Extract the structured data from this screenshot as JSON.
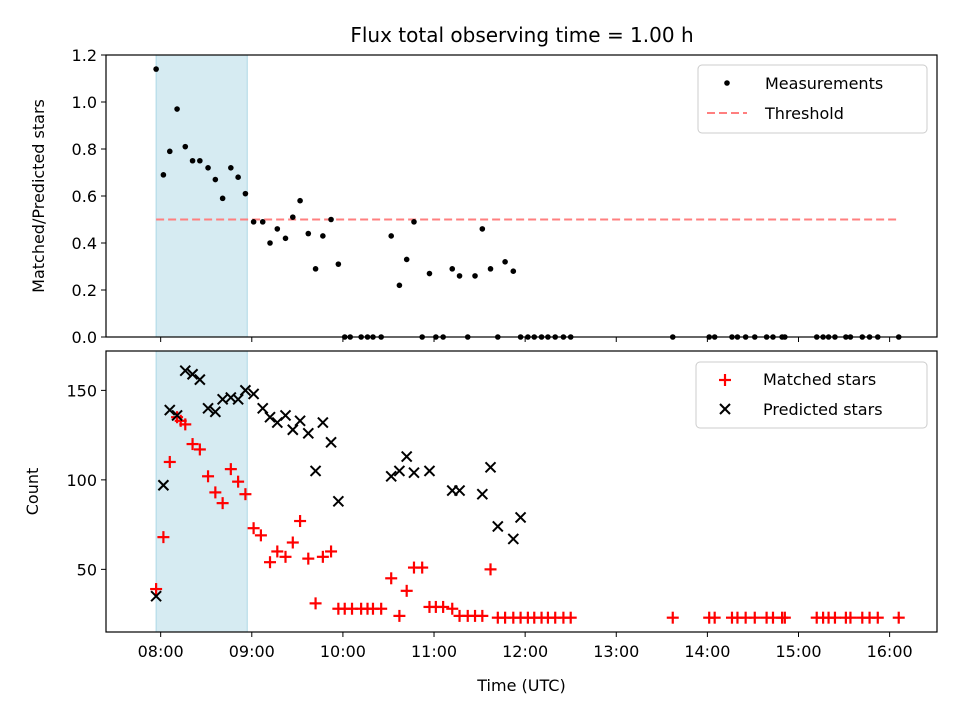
{
  "chart_data": [
    {
      "type": "scatter",
      "title": "Flux total observing time = 1.00 h",
      "xlabel": "",
      "ylabel": "Matched/Predicted stars",
      "xlim": [
        7.4,
        16.52
      ],
      "ylim": [
        0,
        1.2
      ],
      "yticks": [
        0,
        0.2,
        0.4,
        0.6,
        0.8,
        1.0,
        1.2
      ],
      "ytick_labels": [
        "0.0",
        "0.2",
        "0.4",
        "0.6",
        "0.8",
        "1.0",
        "1.2"
      ],
      "legend": {
        "position": "top-right",
        "entries": [
          "Measurements",
          "Threshold"
        ]
      },
      "highlight_span": {
        "x": [
          7.95,
          8.95
        ],
        "color": "#add8e6"
      },
      "threshold": {
        "name": "Threshold",
        "y": 0.5,
        "x": [
          7.95,
          16.1
        ],
        "color": "#ff7f7f"
      },
      "series": [
        {
          "name": "Measurements",
          "marker": "dot",
          "color": "#000000",
          "x": [
            7.95,
            8.03,
            8.1,
            8.18,
            8.27,
            8.35,
            8.43,
            8.52,
            8.6,
            8.68,
            8.77,
            8.85,
            8.93,
            9.02,
            9.12,
            9.2,
            9.28,
            9.37,
            9.45,
            9.53,
            9.62,
            9.7,
            9.78,
            9.87,
            9.95,
            10.02,
            10.08,
            10.2,
            10.27,
            10.33,
            10.42,
            10.53,
            10.62,
            10.7,
            10.78,
            10.87,
            10.95,
            11.02,
            11.1,
            11.2,
            11.28,
            11.37,
            11.45,
            11.53,
            11.62,
            11.7,
            11.78,
            11.87,
            11.95,
            12.03,
            12.1,
            12.18,
            12.25,
            12.33,
            12.42,
            12.5,
            13.62,
            14.02,
            14.08,
            14.27,
            14.33,
            14.42,
            14.52,
            14.65,
            14.72,
            14.82,
            14.85,
            15.2,
            15.27,
            15.33,
            15.4,
            15.52,
            15.57,
            15.7,
            15.78,
            15.87,
            16.1
          ],
          "y": [
            1.14,
            0.69,
            0.79,
            0.97,
            0.81,
            0.75,
            0.75,
            0.72,
            0.67,
            0.59,
            0.72,
            0.68,
            0.61,
            0.49,
            0.49,
            0.4,
            0.46,
            0.42,
            0.51,
            0.58,
            0.44,
            0.29,
            0.43,
            0.5,
            0.31,
            0,
            0,
            0,
            0,
            0,
            0,
            0.43,
            0.22,
            0.33,
            0.49,
            0,
            0.27,
            0,
            0,
            0.29,
            0.26,
            0,
            0.26,
            0.46,
            0.29,
            0,
            0.32,
            0.28,
            0,
            0,
            0,
            0,
            0,
            0,
            0,
            0,
            0,
            0,
            0,
            0,
            0,
            0,
            0,
            0,
            0,
            0,
            0,
            0,
            0,
            0,
            0,
            0,
            0,
            0,
            0,
            0,
            0
          ]
        }
      ]
    },
    {
      "type": "scatter",
      "title": "",
      "xlabel": "Time (UTC)",
      "ylabel": "Count",
      "xlim": [
        7.4,
        16.52
      ],
      "ylim": [
        15,
        172
      ],
      "yticks": [
        50,
        100,
        150
      ],
      "ytick_labels": [
        "50",
        "100",
        "150"
      ],
      "xticks": [
        8,
        9,
        10,
        11,
        12,
        13,
        14,
        15,
        16
      ],
      "xtick_labels": [
        "08:00",
        "09:00",
        "10:00",
        "11:00",
        "12:00",
        "13:00",
        "14:00",
        "15:00",
        "16:00"
      ],
      "legend": {
        "position": "top-right",
        "entries": [
          "Matched stars",
          "Predicted stars"
        ]
      },
      "highlight_span": {
        "x": [
          7.95,
          8.95
        ],
        "color": "#add8e6"
      },
      "series": [
        {
          "name": "Matched stars",
          "marker": "plus",
          "color": "#ff0000",
          "x": [
            7.95,
            8.03,
            8.1,
            8.18,
            8.22,
            8.27,
            8.35,
            8.43,
            8.52,
            8.6,
            8.68,
            8.77,
            8.85,
            8.93,
            9.02,
            9.1,
            9.2,
            9.28,
            9.37,
            9.45,
            9.53,
            9.62,
            9.7,
            9.78,
            9.87,
            9.95,
            10.02,
            10.1,
            10.2,
            10.27,
            10.33,
            10.42,
            10.53,
            10.62,
            10.7,
            10.78,
            10.87,
            10.95,
            11.02,
            11.1,
            11.2,
            11.28,
            11.37,
            11.45,
            11.53,
            11.62,
            11.7,
            11.78,
            11.87,
            11.95,
            12.03,
            12.1,
            12.18,
            12.25,
            12.33,
            12.42,
            12.5,
            13.62,
            14.02,
            14.08,
            14.27,
            14.33,
            14.42,
            14.52,
            14.65,
            14.72,
            14.82,
            14.85,
            15.2,
            15.27,
            15.33,
            15.4,
            15.52,
            15.57,
            15.7,
            15.78,
            15.87,
            16.1
          ],
          "y": [
            39,
            68,
            110,
            135,
            133,
            131,
            120,
            117,
            102,
            93,
            87,
            106,
            99,
            92,
            73,
            69,
            54,
            60,
            57,
            65,
            77,
            56,
            31,
            57,
            60,
            28,
            28,
            28,
            28,
            28,
            28,
            28,
            45,
            24,
            38,
            51,
            51,
            29,
            29,
            29,
            28,
            24,
            24,
            24,
            24,
            50,
            23,
            23,
            23,
            23,
            23,
            23,
            23,
            23,
            23,
            23,
            23,
            23,
            23,
            23,
            23,
            23,
            23,
            23,
            23,
            23,
            23,
            23,
            23,
            23,
            23,
            23,
            23,
            23,
            23,
            23,
            23,
            23
          ]
        },
        {
          "name": "Predicted stars",
          "marker": "x",
          "color": "#000000",
          "x": [
            7.95,
            8.03,
            8.1,
            8.18,
            8.27,
            8.35,
            8.43,
            8.52,
            8.6,
            8.68,
            8.77,
            8.85,
            8.93,
            9.02,
            9.12,
            9.2,
            9.28,
            9.37,
            9.45,
            9.53,
            9.62,
            9.7,
            9.78,
            9.87,
            9.95,
            10.53,
            10.62,
            10.7,
            10.78,
            10.95,
            11.2,
            11.28,
            11.53,
            11.62,
            11.7,
            11.87,
            11.95
          ],
          "y": [
            35,
            97,
            139,
            136,
            161,
            159,
            156,
            140,
            138,
            145,
            146,
            145,
            150,
            148,
            140,
            135,
            132,
            136,
            128,
            133,
            126,
            105,
            132,
            121,
            88,
            102,
            105,
            113,
            104,
            105,
            94,
            94,
            92,
            107,
            74,
            67,
            79
          ]
        }
      ]
    }
  ]
}
